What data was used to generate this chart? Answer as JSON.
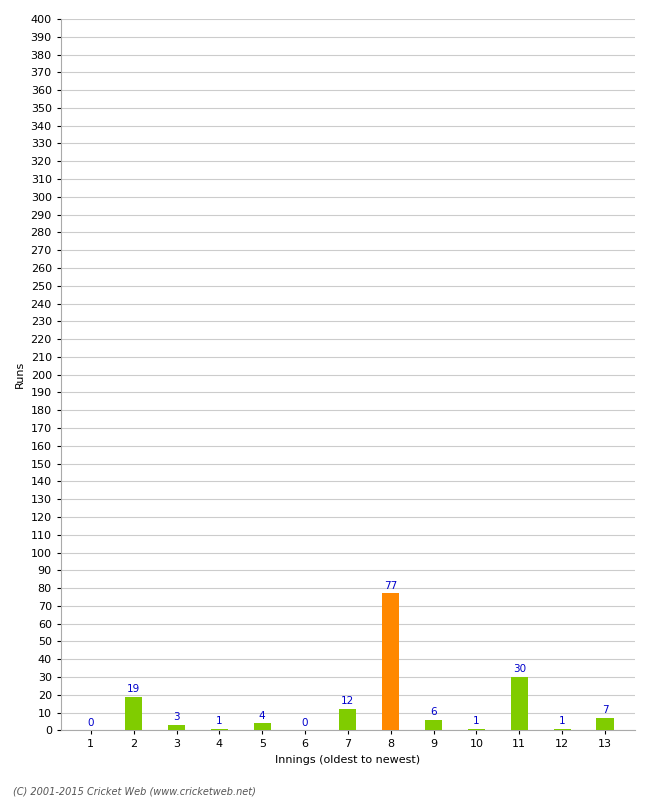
{
  "xlabel": "Innings (oldest to newest)",
  "ylabel": "Runs",
  "categories": [
    1,
    2,
    3,
    4,
    5,
    6,
    7,
    8,
    9,
    10,
    11,
    12,
    13
  ],
  "values": [
    0,
    19,
    3,
    1,
    4,
    0,
    12,
    77,
    6,
    1,
    30,
    1,
    7
  ],
  "bar_colors": [
    "#80cc00",
    "#80cc00",
    "#80cc00",
    "#80cc00",
    "#80cc00",
    "#80cc00",
    "#80cc00",
    "#ff8800",
    "#80cc00",
    "#80cc00",
    "#80cc00",
    "#80cc00",
    "#80cc00"
  ],
  "label_color": "#0000cc",
  "ylim": [
    0,
    400
  ],
  "yticks": [
    0,
    10,
    20,
    30,
    40,
    50,
    60,
    70,
    80,
    90,
    100,
    110,
    120,
    130,
    140,
    150,
    160,
    170,
    180,
    190,
    200,
    210,
    220,
    230,
    240,
    250,
    260,
    270,
    280,
    290,
    300,
    310,
    320,
    330,
    340,
    350,
    360,
    370,
    380,
    390,
    400
  ],
  "grid_color": "#cccccc",
  "background_color": "#ffffff",
  "footer": "(C) 2001-2015 Cricket Web (www.cricketweb.net)",
  "label_fontsize": 7.5,
  "axis_fontsize": 8,
  "ylabel_fontsize": 8,
  "bar_width": 0.4
}
